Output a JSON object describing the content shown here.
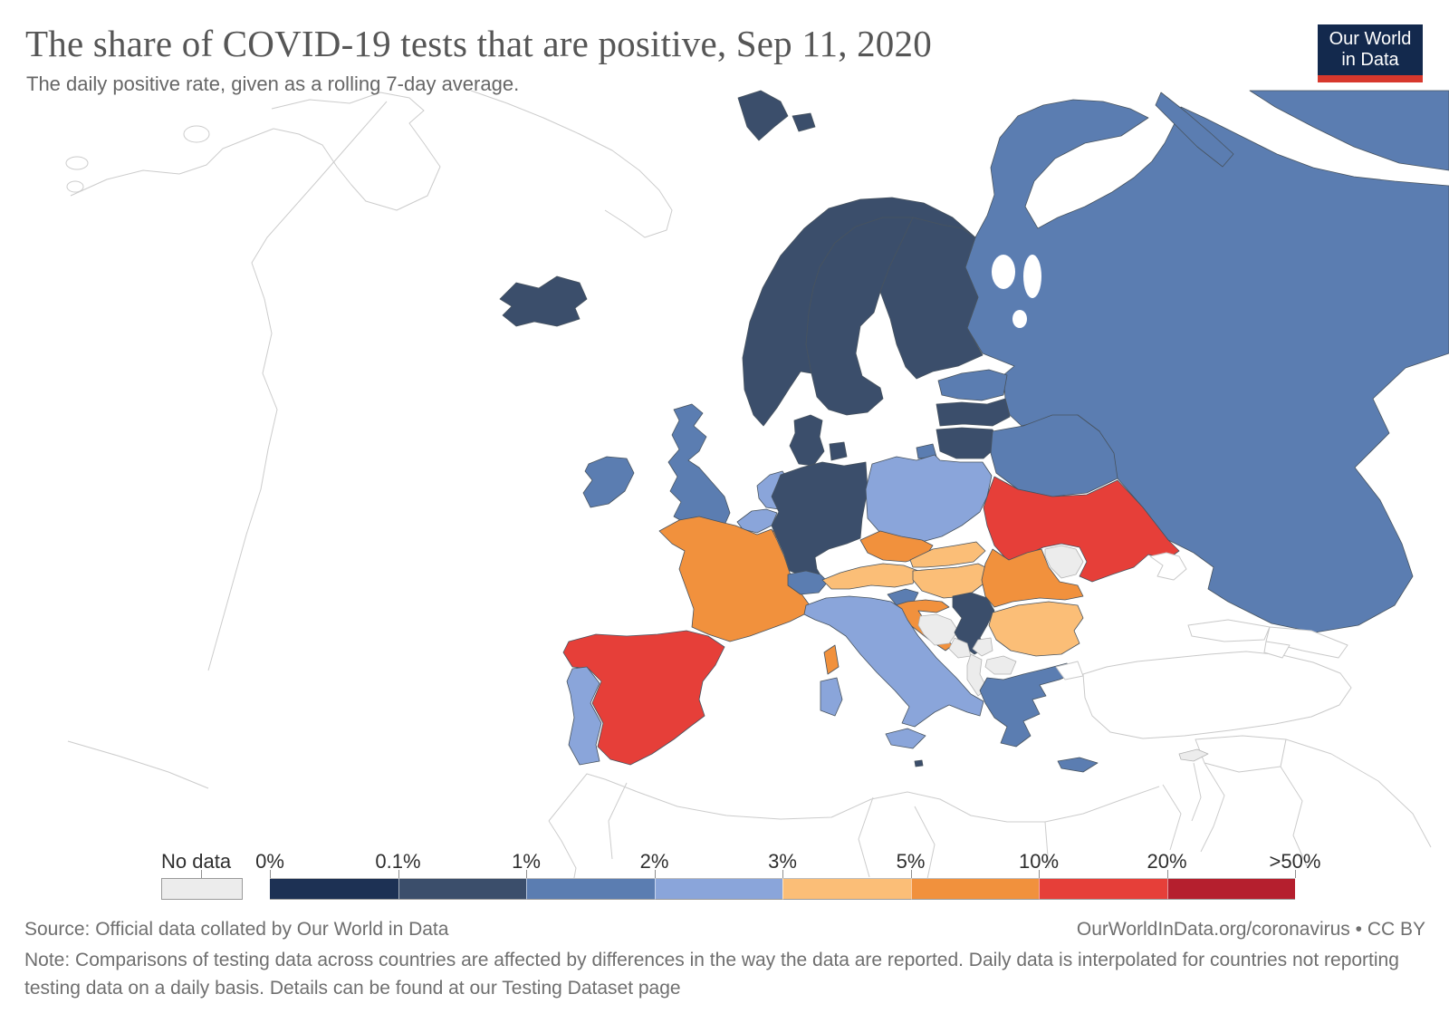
{
  "header": {
    "title": "The share of COVID-19 tests that are positive, Sep 11, 2020",
    "subtitle": "The daily positive rate, given as a rolling 7-day average.",
    "logo_line1": "Our World",
    "logo_line2": "in Data",
    "logo_bg": "#13294d",
    "logo_accent": "#d7382d"
  },
  "legend": {
    "no_data_label": "No data",
    "tick_labels": [
      "0%",
      "0.1%",
      "1%",
      "2%",
      "3%",
      "5%",
      "10%",
      "20%",
      ">50%"
    ],
    "no_data_color": "#ececec",
    "segment_colors": [
      "#1d3154",
      "#3b4e6b",
      "#5b7db1",
      "#8aa5da",
      "#fbbe77",
      "#f1913d",
      "#e63f39",
      "#b51f2e"
    ]
  },
  "footer": {
    "source": "Source: Official data collated by Our World in Data",
    "note": "Note: Comparisons of testing data across countries are affected by differences in the way the data are reported. Daily data is interpolated for countries not reporting testing data on a daily basis. Details can be found at our Testing Dataset page",
    "attribution": "OurWorldInData.org/coronavirus • CC BY"
  },
  "chart_data": {
    "type": "choropleth_map",
    "title": "The share of COVID-19 tests that are positive",
    "date": "Sep 11, 2020",
    "metric": "daily positive rate, rolling 7-day average",
    "region_shown": "Europe",
    "legend_position": "bottom",
    "buckets": {
      "no-data": {
        "label": "No data",
        "color": "#ececec"
      },
      "0-0.1": {
        "label": "0%–0.1%",
        "color": "#1d3154"
      },
      "0.1-1": {
        "label": "0.1%–1%",
        "color": "#3b4e6b"
      },
      "1-2": {
        "label": "1%–2%",
        "color": "#5b7db1"
      },
      "2-3": {
        "label": "2%–3%",
        "color": "#8aa5da"
      },
      "3-5": {
        "label": "3%–5%",
        "color": "#fbbe77"
      },
      "5-10": {
        "label": "5%–10%",
        "color": "#f1913d"
      },
      "10-20": {
        "label": "10%–20%",
        "color": "#e63f39"
      },
      "20-50": {
        "label": "20%–>50%",
        "color": "#b51f2e"
      }
    },
    "countries": [
      {
        "id": "iceland",
        "name": "Iceland",
        "bucket": "0.1-1"
      },
      {
        "id": "norway",
        "name": "Norway",
        "bucket": "0.1-1"
      },
      {
        "id": "sweden",
        "name": "Sweden",
        "bucket": "0.1-1"
      },
      {
        "id": "finland",
        "name": "Finland",
        "bucket": "0.1-1"
      },
      {
        "id": "denmark",
        "name": "Denmark",
        "bucket": "0.1-1"
      },
      {
        "id": "germany",
        "name": "Germany",
        "bucket": "0.1-1"
      },
      {
        "id": "latvia",
        "name": "Latvia",
        "bucket": "0.1-1"
      },
      {
        "id": "lithuania",
        "name": "Lithuania",
        "bucket": "0.1-1"
      },
      {
        "id": "serbia",
        "name": "Serbia",
        "bucket": "0.1-1"
      },
      {
        "id": "malta",
        "name": "Malta",
        "bucket": "0.1-1"
      },
      {
        "id": "uk",
        "name": "United Kingdom",
        "bucket": "1-2"
      },
      {
        "id": "ireland",
        "name": "Ireland",
        "bucket": "1-2"
      },
      {
        "id": "estonia",
        "name": "Estonia",
        "bucket": "1-2"
      },
      {
        "id": "belarus",
        "name": "Belarus",
        "bucket": "1-2"
      },
      {
        "id": "russia",
        "name": "Russia",
        "bucket": "1-2"
      },
      {
        "id": "switzerland",
        "name": "Switzerland",
        "bucket": "1-2"
      },
      {
        "id": "slovenia",
        "name": "Slovenia",
        "bucket": "1-2"
      },
      {
        "id": "greece",
        "name": "Greece",
        "bucket": "1-2"
      },
      {
        "id": "netherlands",
        "name": "Netherlands",
        "bucket": "2-3"
      },
      {
        "id": "belgium",
        "name": "Belgium",
        "bucket": "2-3"
      },
      {
        "id": "poland",
        "name": "Poland",
        "bucket": "2-3"
      },
      {
        "id": "italy",
        "name": "Italy",
        "bucket": "2-3"
      },
      {
        "id": "portugal",
        "name": "Portugal",
        "bucket": "2-3"
      },
      {
        "id": "austria",
        "name": "Austria",
        "bucket": "3-5"
      },
      {
        "id": "slovakia",
        "name": "Slovakia",
        "bucket": "3-5"
      },
      {
        "id": "hungary",
        "name": "Hungary",
        "bucket": "3-5"
      },
      {
        "id": "bulgaria",
        "name": "Bulgaria",
        "bucket": "3-5"
      },
      {
        "id": "france",
        "name": "France",
        "bucket": "5-10"
      },
      {
        "id": "luxembourg",
        "name": "Luxembourg",
        "bucket": "5-10"
      },
      {
        "id": "czechia",
        "name": "Czechia",
        "bucket": "5-10"
      },
      {
        "id": "croatia",
        "name": "Croatia",
        "bucket": "5-10"
      },
      {
        "id": "romania",
        "name": "Romania",
        "bucket": "5-10"
      },
      {
        "id": "spain",
        "name": "Spain",
        "bucket": "10-20"
      },
      {
        "id": "ukraine",
        "name": "Ukraine",
        "bucket": "10-20"
      },
      {
        "id": "bosnia",
        "name": "Bosnia and Herzegovina",
        "bucket": "no-data"
      },
      {
        "id": "montenegro",
        "name": "Montenegro",
        "bucket": "no-data"
      },
      {
        "id": "kosovo",
        "name": "Kosovo",
        "bucket": "no-data"
      },
      {
        "id": "north-macedonia",
        "name": "North Macedonia",
        "bucket": "no-data"
      },
      {
        "id": "albania",
        "name": "Albania",
        "bucket": "no-data"
      },
      {
        "id": "moldova",
        "name": "Moldova",
        "bucket": "no-data"
      },
      {
        "id": "cyprus",
        "name": "Cyprus",
        "bucket": "no-data"
      }
    ]
  }
}
